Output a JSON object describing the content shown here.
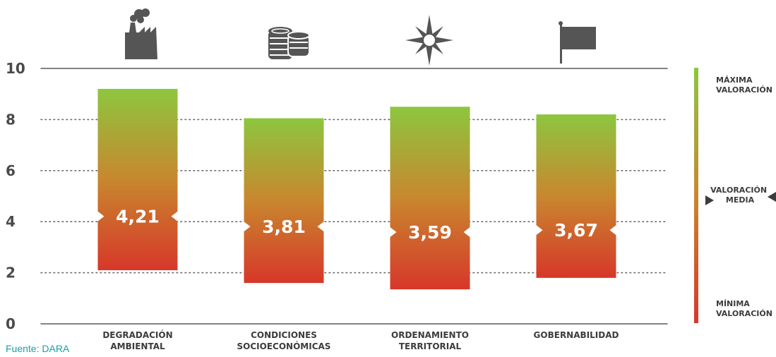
{
  "chart_data": {
    "type": "bar",
    "categories": [
      [
        "DEGRADACIÓN",
        "AMBIENTAL"
      ],
      [
        "CONDICIONES",
        "SOCIOECONÓMICAS"
      ],
      [
        "ORDENAMIENTO",
        "TERRITORIAL"
      ],
      [
        "GOBERNABILIDAD"
      ]
    ],
    "category_icons": [
      "factory-icon",
      "coins-icon",
      "compass-rose-icon",
      "flag-icon"
    ],
    "ranges": [
      [
        2.1,
        9.2
      ],
      [
        1.6,
        8.05
      ],
      [
        1.35,
        8.5
      ],
      [
        1.8,
        8.2
      ]
    ],
    "values": [
      4.21,
      3.81,
      3.59,
      3.67
    ],
    "value_labels": [
      "4,21",
      "3,81",
      "3,59",
      "3,67"
    ],
    "ylim": [
      0,
      10
    ],
    "yticks": [
      0,
      2,
      4,
      6,
      8,
      10
    ],
    "grid": "dotted",
    "legend": {
      "placement": "right",
      "top_label": [
        "MÁXIMA",
        "VALORACIÓN"
      ],
      "mid_label": [
        "VALORACIÓN",
        "MEDIA"
      ],
      "bottom_label": [
        "MÍNIMA",
        "VALORACIÓN"
      ]
    },
    "colors": {
      "high": "#8dc63f",
      "mid": "#c8872e",
      "low": "#d7372a",
      "axis": "#5a5a5a",
      "icon": "#555555",
      "source": "#1aa0a8"
    }
  },
  "source": "Fuente: DARA"
}
